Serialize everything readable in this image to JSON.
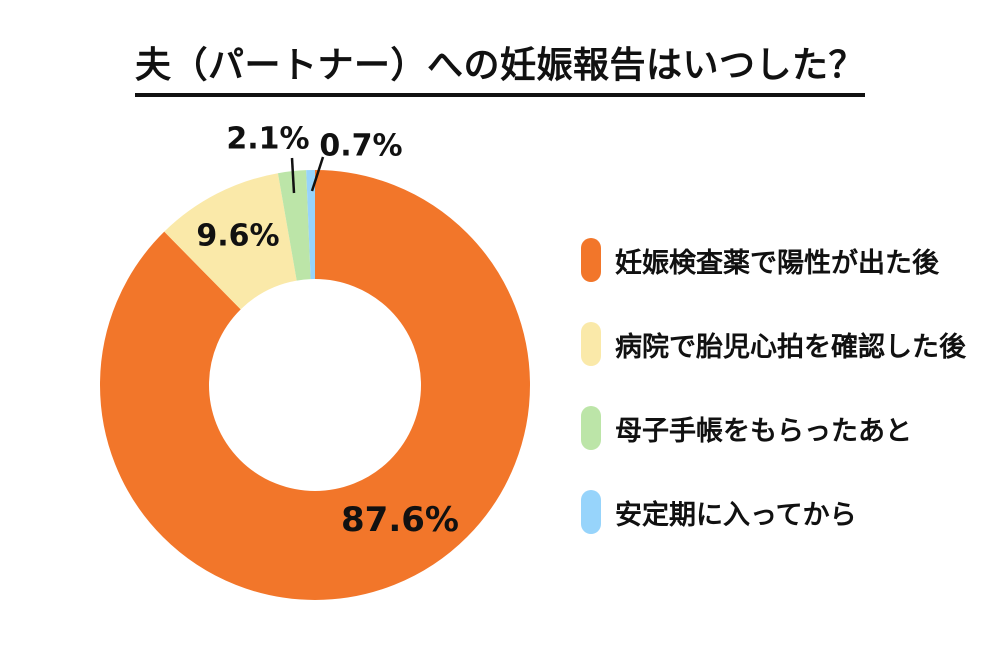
{
  "title": "夫（パートナー）への妊娠報告はいつした？",
  "colors": {
    "background": "#ffffff",
    "text": "#111111",
    "orange": "#F2762A",
    "yellow": "#FAE9A9",
    "green": "#BCE5A8",
    "blue": "#97D4FB"
  },
  "chart_data": {
    "type": "pie",
    "donut": true,
    "title": "夫（パートナー）への妊娠報告はいつした？",
    "start_angle_deg": 0,
    "direction": "clockwise",
    "legend_position": "right",
    "unit": "%",
    "categories": [
      "妊娠検査薬で陽性が出た後",
      "病院で胎児心拍を確認した後",
      "母子手帳をもらったあと",
      "安定期に入ってから"
    ],
    "values": [
      87.6,
      9.6,
      2.1,
      0.7
    ],
    "labels": [
      "87.6%",
      "9.6%",
      "2.1%",
      "0.7%"
    ],
    "slice_colors": [
      "#F2762A",
      "#FAE9A9",
      "#BCE5A8",
      "#97D4FB"
    ]
  }
}
